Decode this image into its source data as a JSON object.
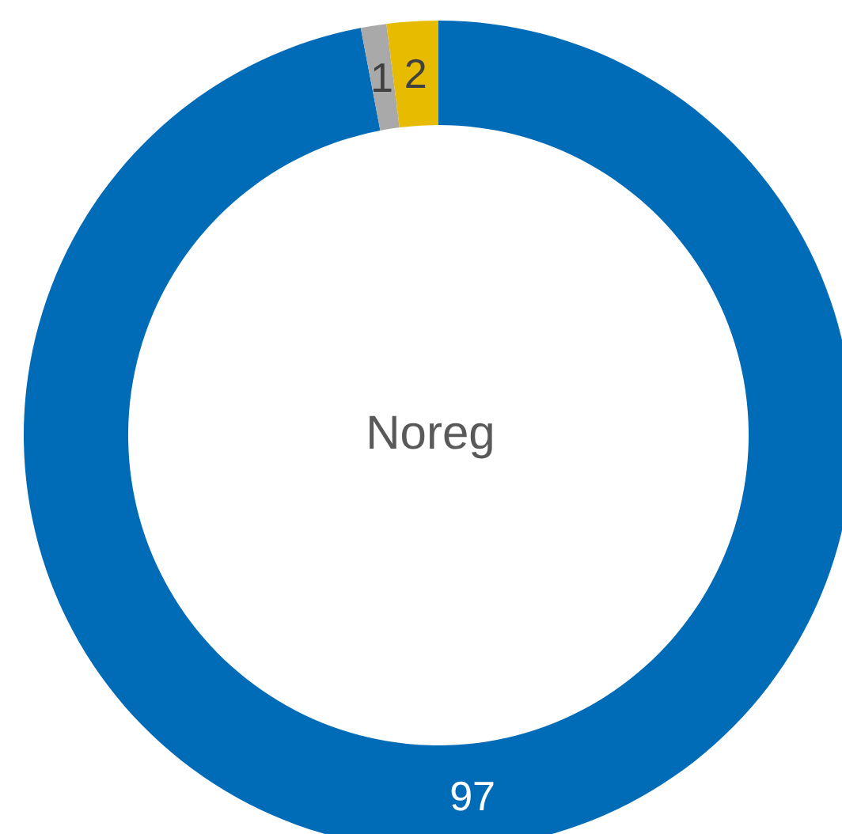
{
  "chart_data": {
    "type": "donut",
    "title": "Noreg",
    "categories": [
      null,
      null,
      null
    ],
    "values": [
      97,
      1,
      2
    ],
    "colors": [
      "#006bb6",
      "#a9a9a9",
      "#e6bb00"
    ],
    "data_labels": true
  }
}
